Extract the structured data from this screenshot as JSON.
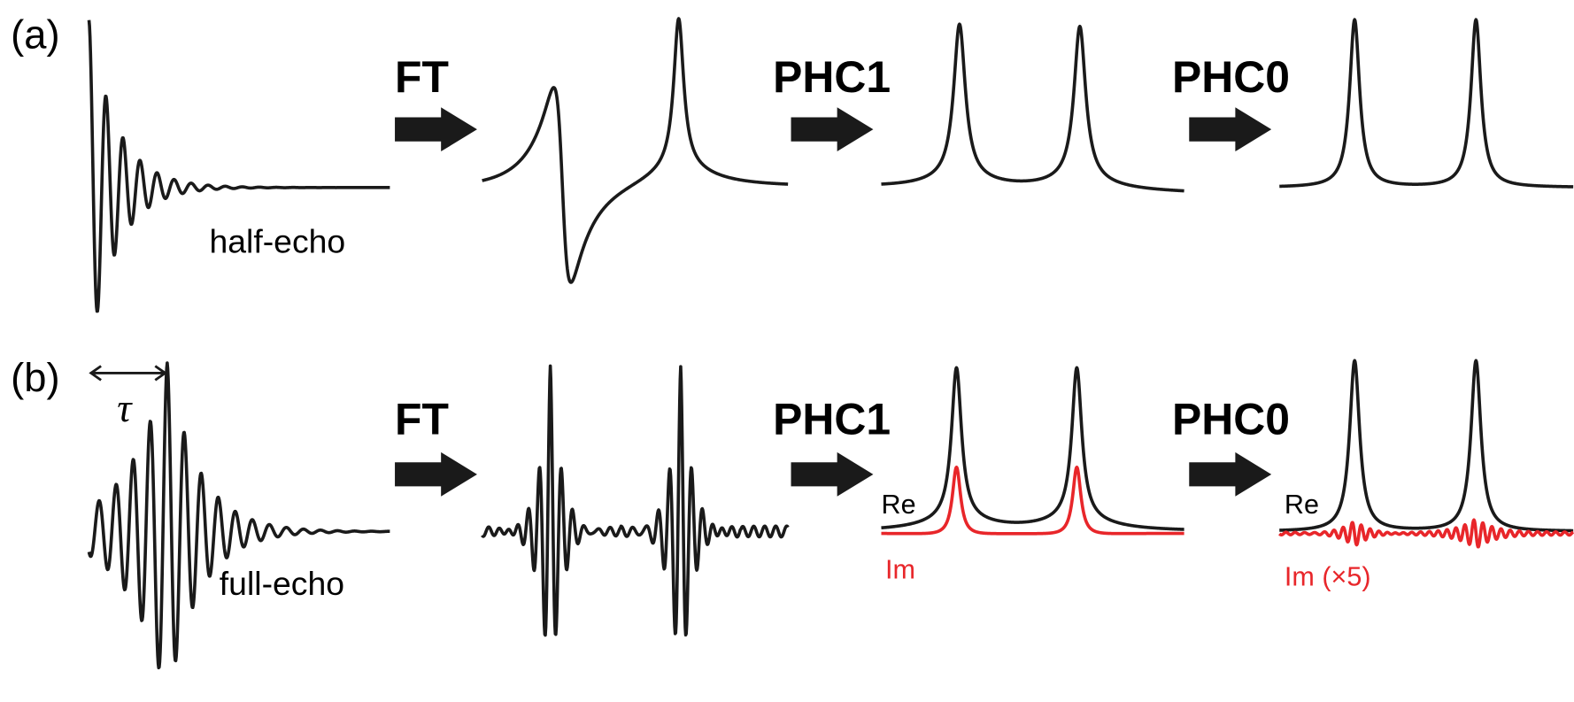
{
  "panels": [
    {
      "label": "(a)",
      "echo_label": "half-echo",
      "steps": [
        "FT",
        "PHC1",
        "PHC0"
      ]
    },
    {
      "label": "(b)",
      "echo_label": "full-echo",
      "tau": "τ",
      "steps": [
        "FT",
        "PHC1",
        "PHC0"
      ],
      "phc1_legend": {
        "re": "Re",
        "im": "Im"
      },
      "phc0_legend": {
        "re": "Re",
        "im": "Im (×5)"
      }
    }
  ]
}
